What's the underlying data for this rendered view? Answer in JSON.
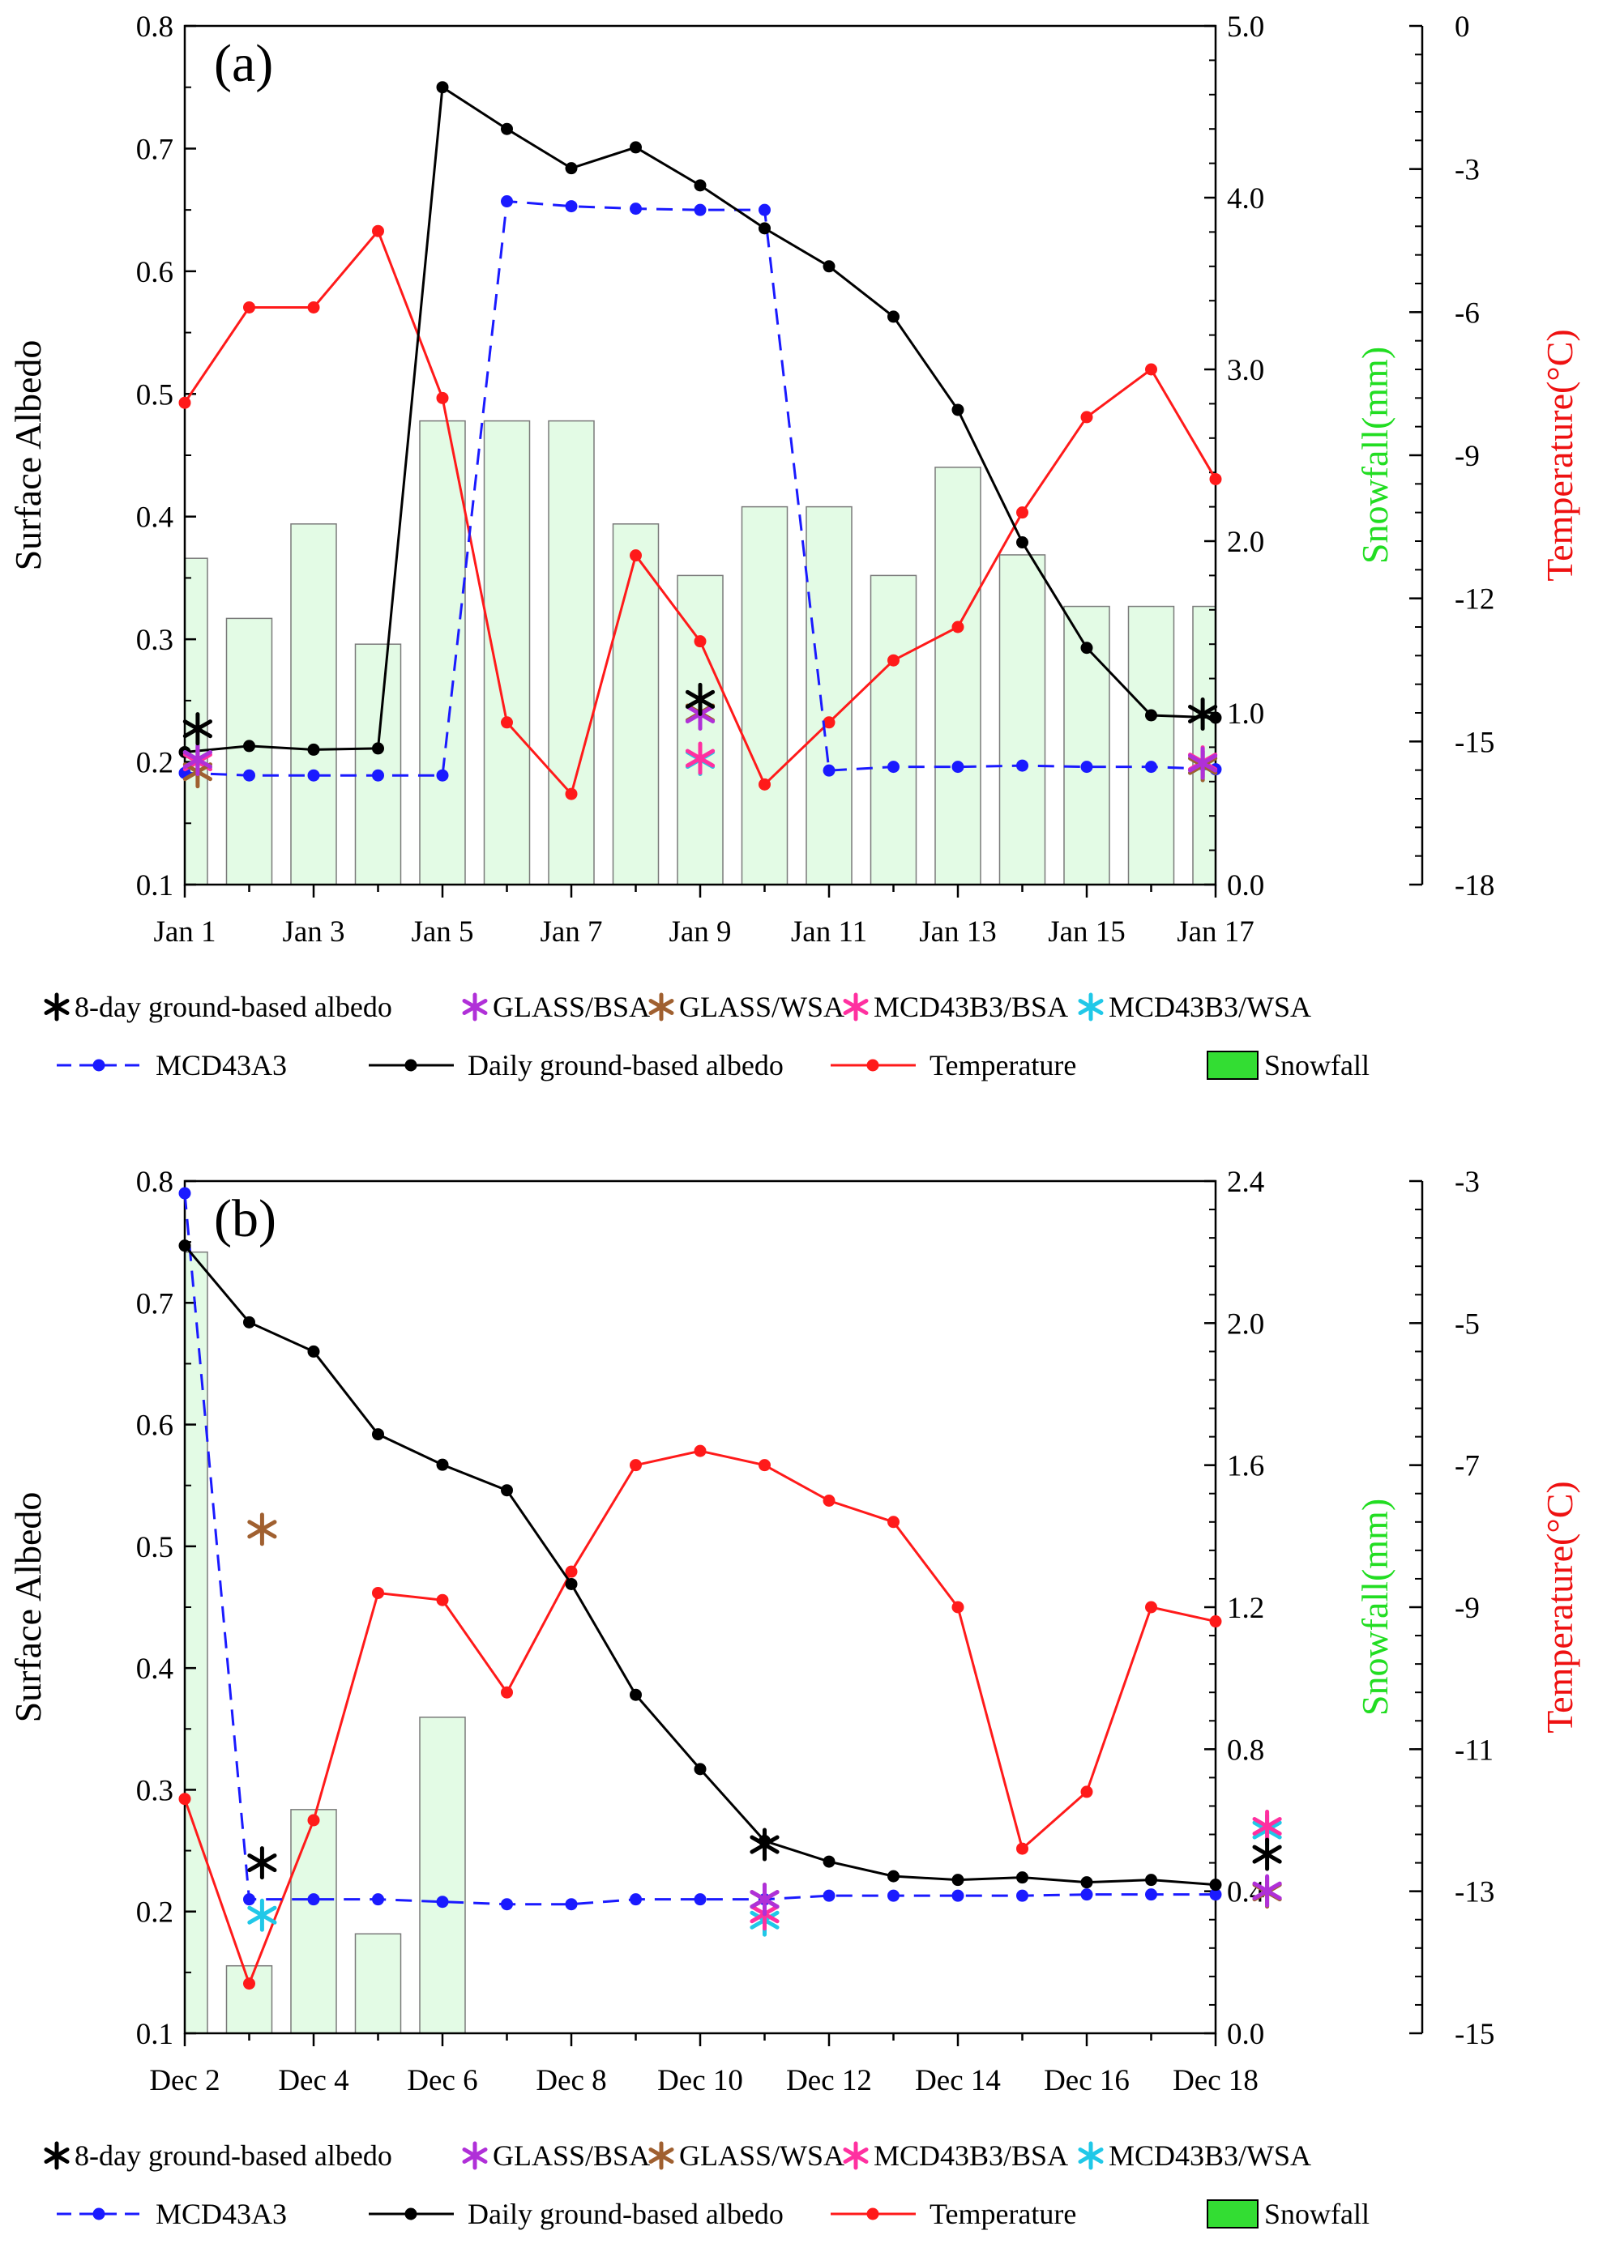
{
  "colors": {
    "albedo_daily": "#000000",
    "mcd43a3": "#1a1aff",
    "temperature": "#ff1a1a",
    "snowfall_fill": "#e3fbe5",
    "snowfall_stroke": "#7a7a7a",
    "snowfall_legend_fill": "#33dd33",
    "snowfall_label": "#22dd22",
    "temperature_label": "#ee1111",
    "ground8": "#000000",
    "glass_bsa": "#b030d8",
    "glass_wsa": "#a06030",
    "mcd_bsa": "#ff30a0",
    "mcd_wsa": "#20c8e8"
  },
  "legend": {
    "row1": [
      {
        "key": "ground8",
        "label": "8-day ground-based albedo",
        "marker": "asterisk"
      },
      {
        "key": "glass_bsa",
        "label": "GLASS/BSA",
        "marker": "asterisk"
      },
      {
        "key": "glass_wsa",
        "label": "GLASS/WSA",
        "marker": "asterisk"
      },
      {
        "key": "mcd_bsa",
        "label": "MCD43B3/BSA",
        "marker": "asterisk"
      },
      {
        "key": "mcd_wsa",
        "label": "MCD43B3/WSA",
        "marker": "asterisk"
      }
    ],
    "row2": [
      {
        "key": "mcd43a3",
        "label": "MCD43A3",
        "marker": "dashed-line-dot"
      },
      {
        "key": "albedo_daily",
        "label": "Daily ground-based albedo",
        "marker": "line-dot"
      },
      {
        "key": "temperature",
        "label": "Temperature",
        "marker": "line-dot"
      },
      {
        "key": "snowfall",
        "label": "Snowfall",
        "marker": "box"
      }
    ]
  },
  "chart_data": [
    {
      "type": "combo",
      "panel_label": "(a)",
      "ylabel_left": "Surface Albedo",
      "ylabel_right1": "Snowfall(mm)",
      "ylabel_right2": "Temperature(°C)",
      "ylim": [
        0.1,
        0.8
      ],
      "yticks": [
        "0.1",
        "0.2",
        "0.3",
        "0.4",
        "0.5",
        "0.6",
        "0.7",
        "0.8"
      ],
      "snow_lim": [
        0,
        5
      ],
      "snow_ticks": [
        "0.0",
        "1.0",
        "2.0",
        "3.0",
        "4.0",
        "5.0"
      ],
      "temp_lim": [
        -18,
        0
      ],
      "temp_ticks": [
        "-18",
        "-15",
        "-12",
        "-9",
        "-6",
        "-3",
        "0"
      ],
      "days": [
        "Jan 1",
        "Jan 2",
        "Jan 3",
        "Jan 4",
        "Jan 5",
        "Jan 6",
        "Jan 7",
        "Jan 8",
        "Jan 9",
        "Jan 10",
        "Jan 11",
        "Jan 12",
        "Jan 13",
        "Jan 14",
        "Jan 15",
        "Jan 16",
        "Jan 17"
      ],
      "xtick_labels": [
        "Jan 1",
        "Jan 3",
        "Jan 5",
        "Jan 7",
        "Jan 9",
        "Jan 11",
        "Jan 13",
        "Jan 15",
        "Jan 17"
      ],
      "snowfall": [
        1.9,
        1.55,
        2.1,
        1.4,
        2.7,
        2.7,
        2.7,
        2.1,
        1.8,
        2.2,
        2.2,
        1.8,
        2.43,
        1.92,
        1.62,
        1.62,
        1.62
      ],
      "daily_albedo": [
        0.208,
        0.213,
        0.21,
        0.211,
        0.75,
        0.716,
        0.684,
        0.701,
        0.67,
        0.635,
        0.604,
        0.563,
        0.487,
        0.379,
        0.293,
        0.238,
        0.236
      ],
      "mcd43a3": [
        0.191,
        0.189,
        0.189,
        0.189,
        0.189,
        0.657,
        0.653,
        0.651,
        0.65,
        0.65,
        0.193,
        0.196,
        0.196,
        0.197,
        0.196,
        0.196,
        0.194
      ],
      "temperature": [
        -7.9,
        -5.9,
        -5.9,
        -4.3,
        -7.8,
        -14.6,
        -16.1,
        -11.1,
        -12.9,
        -15.9,
        -14.6,
        -13.3,
        -12.6,
        -10.2,
        -8.2,
        -7.2,
        -9.5
      ],
      "points_8day": [
        {
          "day": 1.2,
          "ground8": 0.227,
          "glass_bsa": 0.202,
          "glass_wsa": 0.192,
          "mcd_bsa": 0.2,
          "mcd_wsa": 0.202
        },
        {
          "day": 9,
          "ground8": 0.251,
          "glass_bsa": 0.239,
          "glass_wsa": 0.24,
          "mcd_bsa": 0.203,
          "mcd_wsa": 0.202
        },
        {
          "day": 16.8,
          "ground8": 0.239,
          "glass_bsa": 0.199,
          "glass_wsa": 0.197,
          "mcd_bsa": 0.2,
          "mcd_wsa": 0.197
        }
      ]
    },
    {
      "type": "combo",
      "panel_label": "(b)",
      "ylabel_left": "Surface Albedo",
      "ylabel_right1": "Snowfall(mm)",
      "ylabel_right2": "Temperature(°C)",
      "ylim": [
        0.1,
        0.8
      ],
      "yticks": [
        "0.1",
        "0.2",
        "0.3",
        "0.4",
        "0.5",
        "0.6",
        "0.7",
        "0.8"
      ],
      "snow_lim": [
        0,
        2.4
      ],
      "snow_ticks": [
        "0.0",
        "0.4",
        "0.8",
        "1.2",
        "1.6",
        "2.0",
        "2.4"
      ],
      "temp_lim": [
        -15,
        -3
      ],
      "temp_ticks": [
        "-15",
        "-13",
        "-11",
        "-9",
        "-7",
        "-5",
        "-3"
      ],
      "days": [
        "Dec 2",
        "Dec 3",
        "Dec 4",
        "Dec 5",
        "Dec 6",
        "Dec 7",
        "Dec 8",
        "Dec 9",
        "Dec 10",
        "Dec 11",
        "Dec 12",
        "Dec 13",
        "Dec 14",
        "Dec 15",
        "Dec 16",
        "Dec 17",
        "Dec 18"
      ],
      "xtick_labels": [
        "Dec 2",
        "Dec 4",
        "Dec 6",
        "Dec 8",
        "Dec 10",
        "Dec 12",
        "Dec 14",
        "Dec 16",
        "Dec 18"
      ],
      "snowfall": [
        2.2,
        0.19,
        0.63,
        0.28,
        0.89,
        0,
        0,
        0,
        0,
        0,
        0,
        0,
        0,
        0,
        0,
        0,
        0
      ],
      "daily_albedo": [
        0.747,
        0.684,
        0.66,
        0.592,
        0.567,
        0.546,
        0.469,
        0.378,
        0.317,
        0.258,
        0.241,
        0.229,
        0.226,
        0.228,
        0.224,
        0.226,
        0.222
      ],
      "mcd43a3": [
        0.79,
        0.21,
        0.21,
        0.21,
        0.208,
        0.206,
        0.206,
        0.21,
        0.21,
        0.21,
        0.213,
        0.213,
        0.213,
        0.213,
        0.214,
        0.214,
        0.214
      ],
      "temperature": [
        -11.7,
        -14.3,
        -12.0,
        -8.8,
        -8.9,
        -10.2,
        -8.5,
        -7.0,
        -6.8,
        -7.0,
        -7.5,
        -7.8,
        -9.0,
        -12.4,
        -11.6,
        -9.0,
        -9.2
      ],
      "points_8day": [
        {
          "day": 2.2,
          "ground8": 0.24,
          "glass_bsa": null,
          "glass_wsa": 0.514,
          "mcd_bsa": null,
          "mcd_wsa": 0.197
        },
        {
          "day": 10,
          "ground8": 0.255,
          "glass_bsa": 0.21,
          "glass_wsa": 0.21,
          "mcd_bsa": 0.198,
          "mcd_wsa": 0.193
        },
        {
          "day": 17.8,
          "ground8": 0.247,
          "glass_bsa": 0.217,
          "glass_wsa": 0.216,
          "mcd_bsa": 0.27,
          "mcd_wsa": 0.267
        }
      ]
    }
  ]
}
